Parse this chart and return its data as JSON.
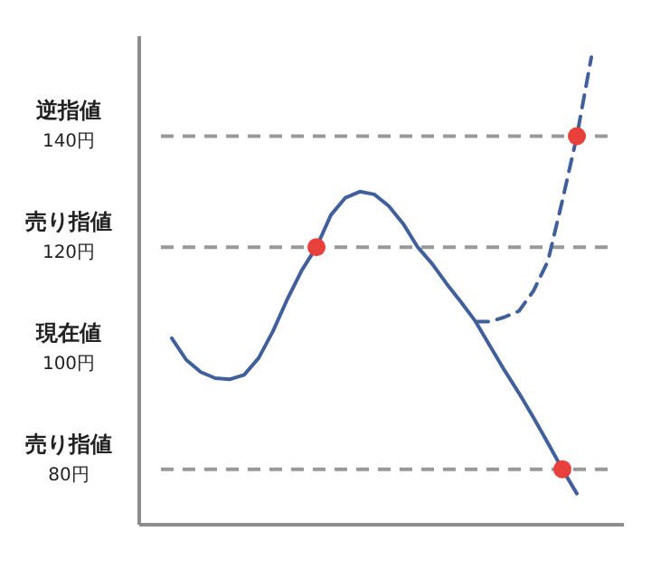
{
  "chart_data": {
    "type": "line",
    "categories": [
      null,
      null,
      null,
      null,
      null,
      null,
      null,
      null,
      null,
      null,
      null,
      null,
      null,
      null,
      null,
      null,
      null,
      null,
      null,
      null,
      null,
      null,
      null,
      null,
      null,
      null,
      null,
      null,
      null,
      null
    ],
    "series": [
      {
        "color": "#41609b",
        "line_style": "solid",
        "values": [
          103.6,
          99.7,
          97.5,
          96.4,
          96.2,
          97.0,
          100.0,
          104.9,
          110.7,
          115.9,
          120,
          125.8,
          128.9,
          130,
          129.5,
          127.4,
          124.2,
          120,
          117,
          113.4,
          110.1,
          106.6,
          102.2,
          97.8,
          93.7,
          89.3,
          84.7,
          80,
          75.6,
          null
        ]
      },
      {
        "color": "#41609b",
        "line_style": "dashed",
        "values": [
          null,
          null,
          null,
          null,
          null,
          null,
          null,
          null,
          null,
          null,
          null,
          null,
          null,
          null,
          null,
          null,
          null,
          null,
          null,
          null,
          null,
          106.6,
          106.6,
          107.4,
          108.5,
          112.1,
          117.5,
          128.4,
          140,
          154.2
        ]
      },
      {
        "type": "scatter",
        "color": "#e8403a",
        "marker": "circle",
        "values": [
          null,
          null,
          null,
          null,
          null,
          null,
          null,
          null,
          null,
          null,
          120,
          null,
          null,
          null,
          null,
          null,
          null,
          null,
          null,
          null,
          null,
          null,
          null,
          null,
          null,
          null,
          null,
          80,
          140,
          null
        ]
      }
    ],
    "ylim": [
      70,
      158
    ],
    "yticks": [
      {
        "value": 140,
        "label": "140円"
      },
      {
        "value": 120,
        "label": "120円"
      },
      {
        "value": 100,
        "label": "100円"
      },
      {
        "value": 80,
        "label": "80円"
      }
    ],
    "annotations": [
      "現在値"
    ],
    "ref_lines": [
      {
        "axis": "y",
        "value": 140,
        "label": "逆指値",
        "color": "#999999",
        "line_style": "dashed"
      },
      {
        "axis": "y",
        "value": 120,
        "label": "売り指値",
        "color": "#999999",
        "line_style": "dashed"
      },
      {
        "axis": "y",
        "value": 80,
        "label": "売り指値",
        "color": "#999999",
        "line_style": "dashed"
      }
    ],
    "grid": false,
    "legend": false,
    "marker": "none"
  }
}
